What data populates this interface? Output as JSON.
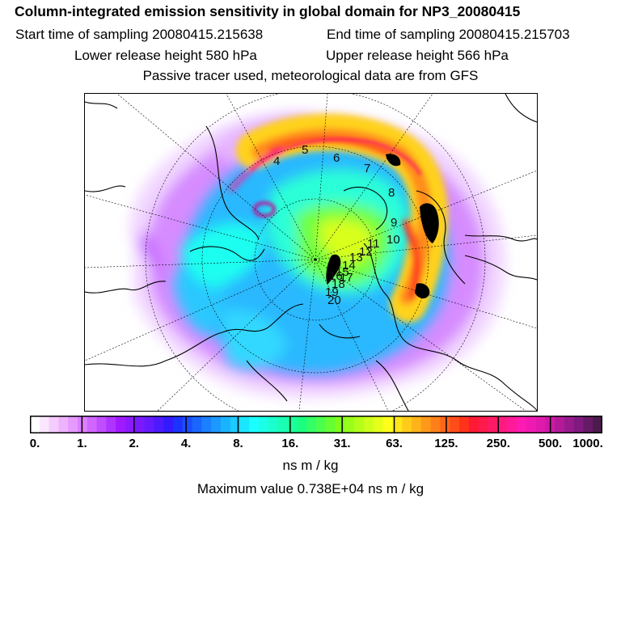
{
  "header": {
    "title": "Column-integrated emission sensitivity in global domain for NP3_20080415",
    "start_sampling": "Start time of sampling 20080415.215638",
    "end_sampling": "End time of sampling 20080415.215703",
    "lower_release": "Lower release height  580 hPa",
    "upper_release": "Upper release height  566 hPa",
    "tracer_note": "Passive tracer used, meteorological data are from GFS"
  },
  "map": {
    "projection": "polar-stereographic",
    "day_labels": [
      "4",
      "5",
      "6",
      "7",
      "8",
      "9",
      "10",
      "11",
      "12",
      "13",
      "14",
      "15",
      "16",
      "17",
      "18",
      "19",
      "20"
    ]
  },
  "colorbar": {
    "tick_labels": [
      "0.",
      "1.",
      "2.",
      "4.",
      "8.",
      "16.",
      "31.",
      "63.",
      "125.",
      "250.",
      "500.",
      "1000."
    ],
    "colors": [
      "#ffffff",
      "#fbe6ff",
      "#f4ccff",
      "#edb3ff",
      "#e699ff",
      "#dc80ff",
      "#d066ff",
      "#c04dff",
      "#b033ff",
      "#a01aff",
      "#8c1aff",
      "#7a1aff",
      "#661aff",
      "#4d1aff",
      "#331aff",
      "#1a33ff",
      "#1a4dff",
      "#1a66ff",
      "#1a80ff",
      "#1a99ff",
      "#1ab3ff",
      "#1accff",
      "#1ae6ff",
      "#1affff",
      "#1affe6",
      "#1affcc",
      "#1affb3",
      "#1aff99",
      "#1aff80",
      "#33ff66",
      "#4dff4d",
      "#66ff33",
      "#80ff1a",
      "#99ff1a",
      "#b3ff1a",
      "#ccff1a",
      "#e6ff1a",
      "#ffff1a",
      "#ffe61a",
      "#ffcc1a",
      "#ffb31a",
      "#ff991a",
      "#ff801a",
      "#ff661a",
      "#ff4d1a",
      "#ff331a",
      "#ff1a33",
      "#ff1a4d",
      "#ff1a66",
      "#ff1a80",
      "#ff1a99",
      "#ff1ab3",
      "#f01ab3",
      "#e01aad",
      "#cc1aa6",
      "#b31a99",
      "#991a8c",
      "#801a80",
      "#661a66",
      "#4d1a4d"
    ],
    "units": "ns m / kg",
    "maximum": "Maximum value  0.738E+04 ns m / kg"
  }
}
